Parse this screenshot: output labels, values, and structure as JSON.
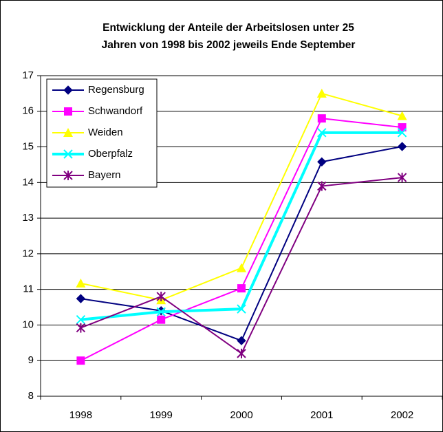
{
  "chart_data": {
    "type": "line",
    "title": [
      "Entwicklung der Anteile der Arbeitslosen unter 25",
      "Jahren von 1998 bis 2002 jeweils Ende September"
    ],
    "categories": [
      "1998",
      "1999",
      "2000",
      "2001",
      "2002"
    ],
    "series": [
      {
        "name": "Regensburg",
        "color": "#000080",
        "marker": "diamond",
        "values": [
          10.74,
          10.4,
          9.56,
          14.58,
          15.01
        ]
      },
      {
        "name": "Schwandorf",
        "color": "#ff00ff",
        "marker": "square",
        "values": [
          9.0,
          10.15,
          11.03,
          15.8,
          15.55
        ]
      },
      {
        "name": "Weiden",
        "color": "#ffff00",
        "marker": "triangle",
        "values": [
          11.17,
          10.7,
          11.6,
          16.5,
          15.87
        ]
      },
      {
        "name": "Oberpfalz",
        "color": "#00ffff",
        "marker": "x",
        "values": [
          10.15,
          10.37,
          10.45,
          15.4,
          15.4
        ]
      },
      {
        "name": "Bayern",
        "color": "#800080",
        "marker": "asterisk",
        "values": [
          9.92,
          10.8,
          9.2,
          13.9,
          14.14
        ]
      }
    ],
    "ylim": [
      8,
      17
    ],
    "yticks": [
      8,
      9,
      10,
      11,
      12,
      13,
      14,
      15,
      16,
      17
    ],
    "grid": true,
    "legend": "top-left"
  }
}
